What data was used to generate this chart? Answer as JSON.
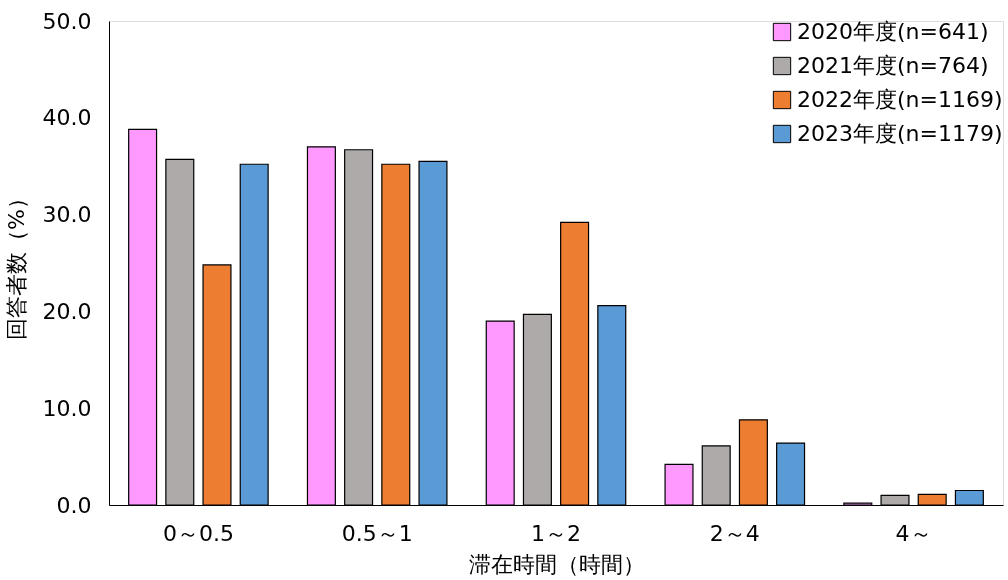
{
  "chart_data": {
    "type": "bar",
    "xlabel": "滞在時間（時間）",
    "ylabel": "回答者数（%）",
    "categories": [
      "0～0.5",
      "0.5～1",
      "1～2",
      "2～4",
      "4～"
    ],
    "series": [
      {
        "name": "2020年度(n=641)",
        "color": "#ff99ff",
        "values": [
          38.8,
          37.0,
          19.0,
          4.2,
          0.2
        ]
      },
      {
        "name": "2021年度(n=764)",
        "color": "#aeaaaa",
        "values": [
          35.7,
          36.7,
          19.7,
          6.1,
          1.0
        ]
      },
      {
        "name": "2022年度(n=1169)",
        "color": "#ed7d31",
        "values": [
          24.8,
          35.2,
          29.2,
          8.8,
          1.1
        ]
      },
      {
        "name": "2023年度(n=1179)",
        "color": "#5b9bd5",
        "values": [
          35.2,
          35.5,
          20.6,
          6.4,
          1.5
        ]
      }
    ],
    "ylim": [
      0,
      50
    ],
    "yticks": [
      {
        "value": 0,
        "label": "0.0"
      },
      {
        "value": 10,
        "label": "10.0"
      },
      {
        "value": 20,
        "label": "20.0"
      },
      {
        "value": 30,
        "label": "30.0"
      },
      {
        "value": 40,
        "label": "40.0"
      },
      {
        "value": 50,
        "label": "50.0"
      }
    ],
    "legend": "top right",
    "grid": false
  }
}
